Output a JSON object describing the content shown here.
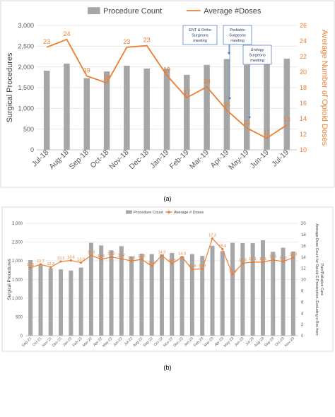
{
  "panel_a_caption": "(a)",
  "panel_b_caption": "(b)",
  "chart_data": [
    {
      "type": "bar",
      "secondary_type": "line",
      "categories": [
        "Jul-18",
        "Aug-18",
        "Sep-18",
        "Oct-18",
        "Nov-18",
        "Dec-18",
        "Jan-19",
        "Feb-19",
        "Mar-19",
        "Apr-19",
        "May-19",
        "Jun-19",
        "Jul-19"
      ],
      "series": [
        {
          "name": "Procedure Count",
          "axis": "left",
          "color": "#a6a6a6",
          "values": [
            1910,
            2080,
            1730,
            1890,
            2030,
            1960,
            1960,
            1810,
            2050,
            2190,
            2050,
            2100,
            2200
          ]
        },
        {
          "name": "Average #Doses",
          "axis": "right",
          "color": "#ed7d31",
          "values": [
            23,
            24,
            19,
            18,
            23,
            23,
            19,
            17,
            18,
            15,
            13,
            11,
            13
          ],
          "plot_values": [
            23.2,
            24.2,
            19.5,
            18.6,
            23.2,
            23.4,
            19.6,
            16.7,
            18.1,
            15.1,
            12.8,
            11.5,
            13.2
          ]
        }
      ],
      "ylabel": "Surgical Procedures",
      "y2label": "Average Number of Opioid Doses",
      "ylim": [
        0,
        3000
      ],
      "y2lim": [
        10,
        26
      ],
      "yticks": [
        "0",
        "500",
        "1,000",
        "1,500",
        "2,000",
        "2,500",
        "3,000"
      ],
      "y2ticks": [
        "10",
        "12",
        "14",
        "16",
        "18",
        "20",
        "22",
        "24",
        "26"
      ],
      "legend": "top",
      "annotations": [
        {
          "text": [
            "ENT & Ortho",
            "Surgeons",
            "meeting"
          ],
          "at": "Mar-19"
        },
        {
          "text": [
            "Pediatric",
            "Surgeons",
            "meeting"
          ],
          "at": "Apr-19"
        },
        {
          "text": [
            "Urology",
            "Surgeons",
            "meeting"
          ],
          "at": "May-19"
        }
      ]
    },
    {
      "type": "bar",
      "secondary_type": "line",
      "categories": [
        "Sep-21",
        "Oct-21",
        "Nov-21",
        "Dec-21",
        "Jan-22",
        "Feb-22",
        "Mar-22",
        "Apr-22",
        "May-22",
        "Jun-22",
        "Jul-22",
        "Aug-22",
        "Sep-22",
        "Oct-22",
        "Nov-22",
        "Dec-22",
        "Jan-23",
        "Feb-23",
        "Mar-23",
        "Apr-23",
        "May-23",
        "Jun-23",
        "Jul-23",
        "Aug-23",
        "Sep-23",
        "Oct-23",
        "Nov-23"
      ],
      "series": [
        {
          "name": "Procedure Count",
          "axis": "left",
          "color": "#a6a6a6",
          "values": [
            2020,
            1880,
            1800,
            1770,
            1740,
            1820,
            2480,
            2410,
            2280,
            2390,
            2120,
            2190,
            2180,
            2170,
            2210,
            2120,
            2180,
            2130,
            2400,
            2260,
            2480,
            2470,
            2470,
            2550,
            2240,
            2350,
            2250
          ]
        },
        {
          "name": "Average # Doses",
          "axis": "right",
          "color": "#ed7d31",
          "values": [
            "12.1",
            "12.7",
            "12.2",
            "13.2",
            "13.4",
            "13.0",
            "14.3",
            "13.6",
            "14.0",
            "13.7",
            "13.3",
            "13.6",
            "12.4",
            "14.3",
            "12.8",
            "14.0",
            "11.8",
            "11.9",
            "17.3",
            "15.4",
            "10.9",
            "12.9",
            "13.1",
            "13.1",
            "13.5",
            "13.2",
            "13.9"
          ],
          "plot_values": [
            12.1,
            12.7,
            12.2,
            13.2,
            13.4,
            13.0,
            14.3,
            13.6,
            14.0,
            13.7,
            13.3,
            13.6,
            12.4,
            14.3,
            12.8,
            14.0,
            11.8,
            11.9,
            17.3,
            15.4,
            10.9,
            12.9,
            13.1,
            13.1,
            13.5,
            13.2,
            13.9
          ]
        }
      ],
      "ylabel": "Surgical Procedures",
      "y2label": [
        "Average Dose Count for Opioid E-Prescription, Excluding e-Rxs from",
        "Pain/Palliative Care"
      ],
      "ylim": [
        0,
        3000
      ],
      "y2lim": [
        0,
        20
      ],
      "yticks": [
        "0",
        "500",
        "1,000",
        "1,500",
        "2,000",
        "2,500",
        "3,000"
      ],
      "y2ticks": [
        "0",
        "2",
        "4",
        "6",
        "8",
        "10",
        "12",
        "14",
        "16",
        "18",
        "20"
      ],
      "legend": "top"
    }
  ]
}
